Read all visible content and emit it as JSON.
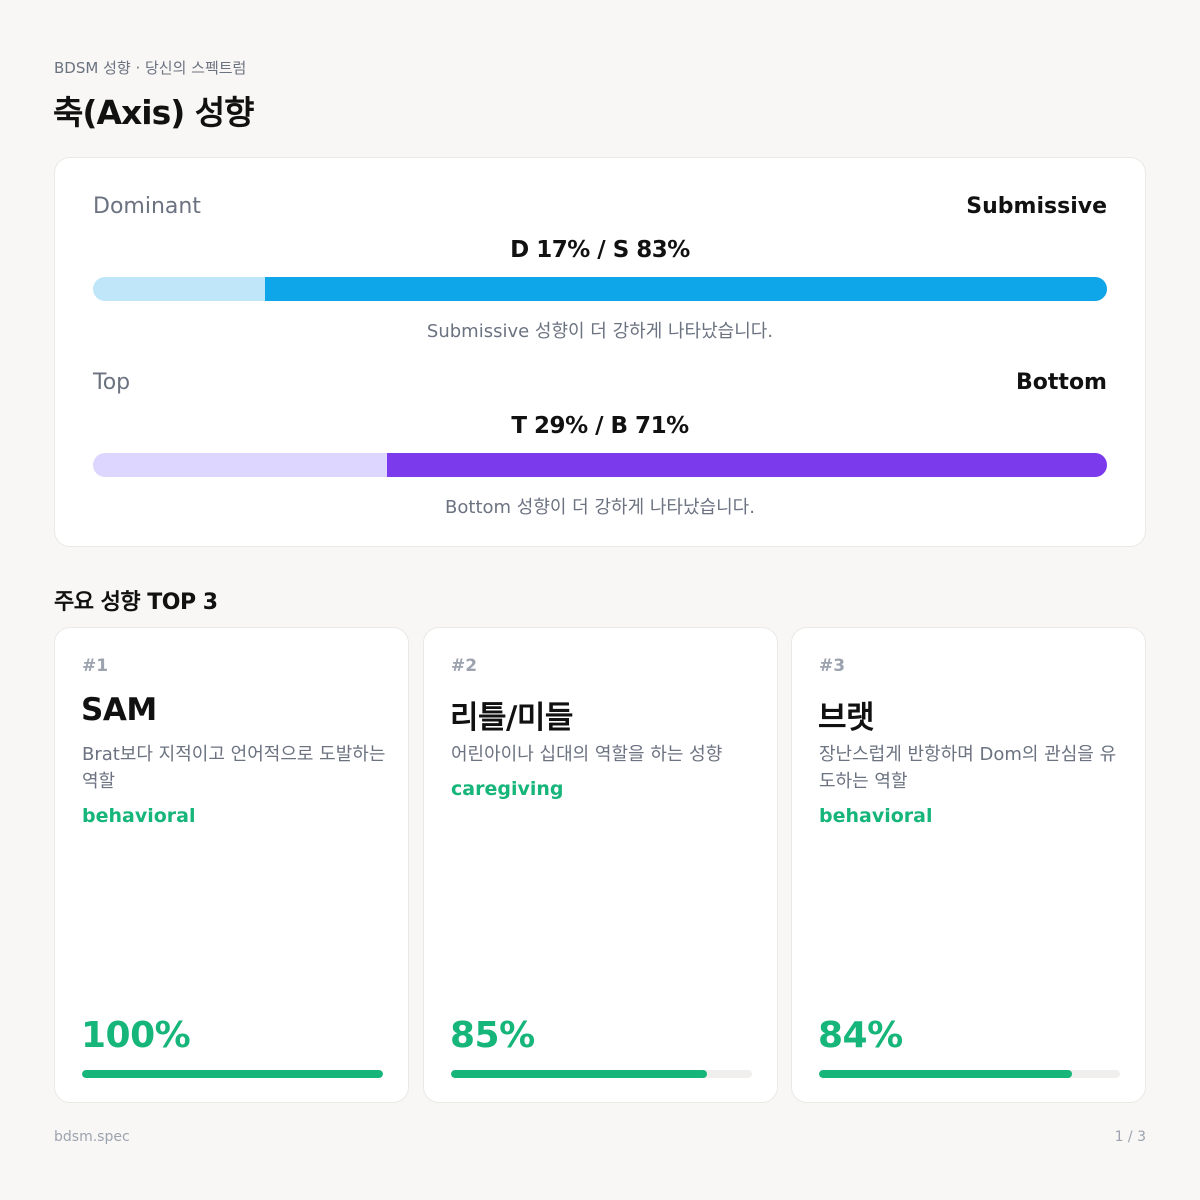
{
  "header": {
    "eyebrow": "BDSM 성향 · 당신의 스펙트럼",
    "title": "축(Axis) 성향"
  },
  "axes": [
    {
      "left_label": "Dominant",
      "right_label": "Submissive",
      "ratio_text": "D 17% / S 83%",
      "right_percent": 83,
      "note": "Submissive 성향이 더 강하게 나타났습니다.",
      "track_color": "#bfe6f9",
      "fill_color": "#0ea5e9"
    },
    {
      "left_label": "Top",
      "right_label": "Bottom",
      "ratio_text": "T 29% / B 71%",
      "right_percent": 71,
      "note": "Bottom 성향이 더 강하게 나타났습니다.",
      "track_color": "#ddd6fe",
      "fill_color": "#7c3aed"
    }
  ],
  "top3": {
    "title": "주요 성향 TOP 3",
    "items": [
      {
        "rank": "#1",
        "name": "SAM",
        "desc": "Brat보다 지적이고 언어적으로 도발하는 역할",
        "category": "behavioral",
        "percent_text": "100%",
        "percent": 100
      },
      {
        "rank": "#2",
        "name": "리틀/미들",
        "desc": "어린아이나 십대의 역할을 하는 성향",
        "category": "caregiving",
        "percent_text": "85%",
        "percent": 85
      },
      {
        "rank": "#3",
        "name": "브랫",
        "desc": "장난스럽게 반항하며 Dom의 관심을 유도하는 역할",
        "category": "behavioral",
        "percent_text": "84%",
        "percent": 84
      }
    ]
  },
  "footer": {
    "brand": "bdsm.spec",
    "page": "1 / 3"
  },
  "colors": {
    "accent_green": "#16b57a"
  }
}
